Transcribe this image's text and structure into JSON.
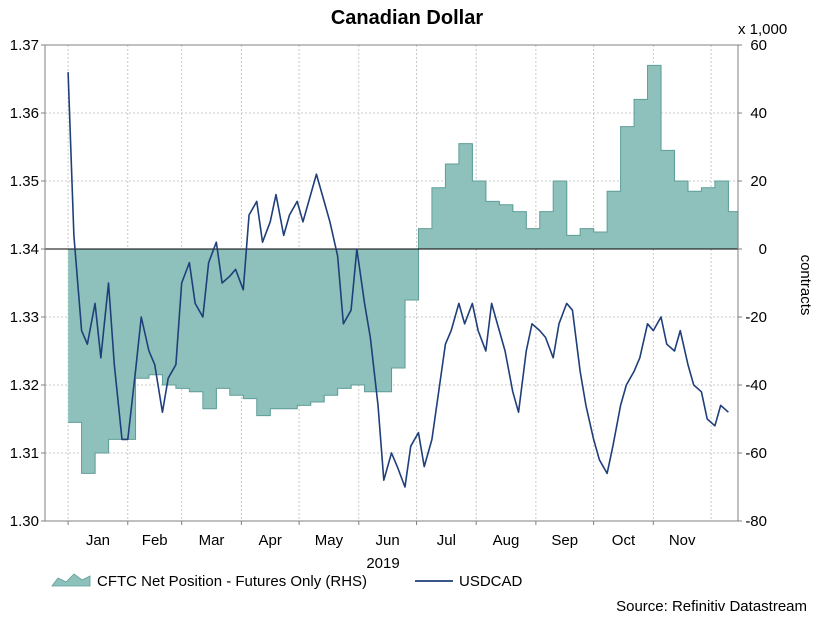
{
  "chart_data": {
    "type": "area+line",
    "title": "Canadian Dollar",
    "source": "Source: Refinitiv Datastream",
    "year_label": "2019",
    "x_ticks": [
      "Jan",
      "Feb",
      "Mar",
      "Apr",
      "May",
      "Jun",
      "Jul",
      "Aug",
      "Sep",
      "Oct",
      "Nov"
    ],
    "left_axis": {
      "ticks": [
        "1.30",
        "1.31",
        "1.32",
        "1.33",
        "1.34",
        "1.35",
        "1.36",
        "1.37"
      ],
      "ylim": [
        1.3,
        1.37
      ]
    },
    "right_axis": {
      "label": "contracts",
      "unit_note": "x 1,000",
      "ticks": [
        "-80",
        "-60",
        "-40",
        "-20",
        "0",
        "20",
        "40",
        "60"
      ],
      "ylim": [
        -80,
        60
      ]
    },
    "legend": [
      {
        "label": "CFTC Net Position - Futures Only (RHS)",
        "color": "#8fc1bc"
      },
      {
        "label": "USDCAD",
        "color": "#1f3f7a"
      }
    ],
    "series": [
      {
        "name": "CFTC Net Position - Futures Only (RHS)",
        "kind": "area",
        "color": "#8fc1bc",
        "x": [
          "2019-01-01",
          "2019-01-08",
          "2019-01-15",
          "2019-01-22",
          "2019-01-29",
          "2019-02-05",
          "2019-02-12",
          "2019-02-19",
          "2019-02-26",
          "2019-03-05",
          "2019-03-12",
          "2019-03-19",
          "2019-03-26",
          "2019-04-02",
          "2019-04-09",
          "2019-04-16",
          "2019-04-23",
          "2019-04-30",
          "2019-05-07",
          "2019-05-14",
          "2019-05-21",
          "2019-05-28",
          "2019-06-04",
          "2019-06-11",
          "2019-06-18",
          "2019-06-25",
          "2019-07-02",
          "2019-07-09",
          "2019-07-16",
          "2019-07-23",
          "2019-07-30",
          "2019-08-06",
          "2019-08-13",
          "2019-08-20",
          "2019-08-27",
          "2019-09-03",
          "2019-09-10",
          "2019-09-17",
          "2019-09-24",
          "2019-10-01",
          "2019-10-08",
          "2019-10-15",
          "2019-10-22",
          "2019-10-29",
          "2019-11-05",
          "2019-11-12",
          "2019-11-19",
          "2019-11-26",
          "2019-12-03",
          "2019-12-10"
        ],
        "values": [
          -51,
          -66,
          -60,
          -56,
          -56,
          -38,
          -37,
          -40,
          -41,
          -42,
          -47,
          -41,
          -43,
          -44,
          -49,
          -47,
          -47,
          -46,
          -45,
          -43,
          -41,
          -40,
          -42,
          -42,
          -35,
          -15,
          6,
          18,
          25,
          31,
          20,
          14,
          13,
          11,
          6,
          11,
          20,
          4,
          6,
          5,
          17,
          36,
          44,
          54,
          29,
          20,
          17,
          18,
          20,
          11
        ]
      },
      {
        "name": "USDCAD",
        "kind": "line",
        "color": "#1f3f7a",
        "x": [
          "2019-01-01",
          "2019-01-04",
          "2019-01-08",
          "2019-01-11",
          "2019-01-15",
          "2019-01-18",
          "2019-01-22",
          "2019-01-25",
          "2019-01-29",
          "2019-02-01",
          "2019-02-05",
          "2019-02-08",
          "2019-02-12",
          "2019-02-15",
          "2019-02-19",
          "2019-02-22",
          "2019-02-26",
          "2019-03-01",
          "2019-03-05",
          "2019-03-08",
          "2019-03-12",
          "2019-03-15",
          "2019-03-19",
          "2019-03-22",
          "2019-03-26",
          "2019-03-29",
          "2019-04-02",
          "2019-04-05",
          "2019-04-09",
          "2019-04-12",
          "2019-04-16",
          "2019-04-19",
          "2019-04-23",
          "2019-04-26",
          "2019-04-30",
          "2019-05-03",
          "2019-05-07",
          "2019-05-10",
          "2019-05-14",
          "2019-05-17",
          "2019-05-21",
          "2019-05-24",
          "2019-05-28",
          "2019-05-31",
          "2019-06-04",
          "2019-06-07",
          "2019-06-11",
          "2019-06-14",
          "2019-06-18",
          "2019-06-21",
          "2019-06-25",
          "2019-06-28",
          "2019-07-02",
          "2019-07-05",
          "2019-07-09",
          "2019-07-12",
          "2019-07-16",
          "2019-07-19",
          "2019-07-23",
          "2019-07-26",
          "2019-07-30",
          "2019-08-02",
          "2019-08-06",
          "2019-08-09",
          "2019-08-13",
          "2019-08-16",
          "2019-08-20",
          "2019-08-23",
          "2019-08-27",
          "2019-08-30",
          "2019-09-03",
          "2019-09-06",
          "2019-09-10",
          "2019-09-13",
          "2019-09-17",
          "2019-09-20",
          "2019-09-24",
          "2019-09-27",
          "2019-10-01",
          "2019-10-04",
          "2019-10-08",
          "2019-10-11",
          "2019-10-15",
          "2019-10-18",
          "2019-10-22",
          "2019-10-25",
          "2019-10-29",
          "2019-11-01",
          "2019-11-05",
          "2019-11-08",
          "2019-11-12",
          "2019-11-15",
          "2019-11-19",
          "2019-11-22",
          "2019-11-26",
          "2019-11-29",
          "2019-12-03",
          "2019-12-06",
          "2019-12-10"
        ],
        "values": [
          1.366,
          1.342,
          1.328,
          1.326,
          1.332,
          1.324,
          1.335,
          1.323,
          1.312,
          1.312,
          1.322,
          1.33,
          1.325,
          1.323,
          1.316,
          1.321,
          1.323,
          1.335,
          1.338,
          1.332,
          1.33,
          1.338,
          1.341,
          1.335,
          1.336,
          1.337,
          1.334,
          1.345,
          1.347,
          1.341,
          1.344,
          1.348,
          1.342,
          1.345,
          1.347,
          1.344,
          1.348,
          1.351,
          1.347,
          1.344,
          1.339,
          1.329,
          1.331,
          1.34,
          1.332,
          1.327,
          1.317,
          1.306,
          1.31,
          1.308,
          1.305,
          1.311,
          1.313,
          1.308,
          1.312,
          1.318,
          1.326,
          1.328,
          1.332,
          1.329,
          1.332,
          1.328,
          1.325,
          1.332,
          1.328,
          1.325,
          1.319,
          1.316,
          1.325,
          1.329,
          1.328,
          1.327,
          1.324,
          1.329,
          1.332,
          1.331,
          1.322,
          1.317,
          1.312,
          1.309,
          1.307,
          1.311,
          1.317,
          1.32,
          1.322,
          1.324,
          1.329,
          1.328,
          1.33,
          1.326,
          1.325,
          1.328,
          1.323,
          1.32,
          1.319,
          1.315,
          1.314,
          1.317,
          1.316
        ]
      }
    ]
  }
}
